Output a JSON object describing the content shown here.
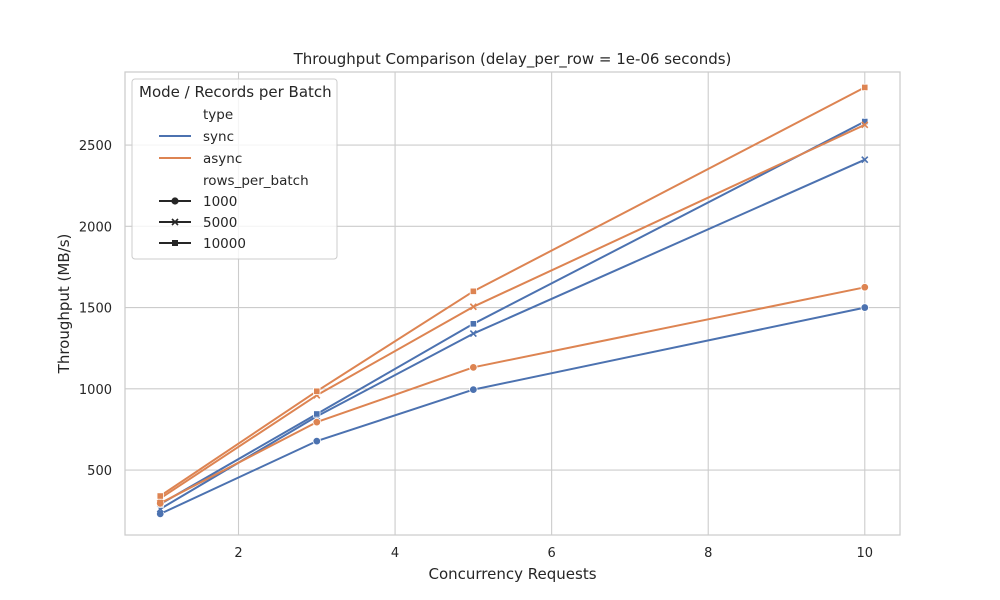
{
  "chart_data": {
    "type": "line",
    "title": "Throughput Comparison (delay_per_row = 1e-06 seconds)",
    "xlabel": "Concurrency Requests",
    "ylabel": "Throughput (MB/s)",
    "xlim": [
      0.55,
      10.45
    ],
    "ylim": [
      100,
      2950
    ],
    "xticks": [
      2,
      4,
      6,
      8,
      10
    ],
    "yticks": [
      500,
      1000,
      1500,
      2000,
      2500
    ],
    "grid": true,
    "colors": {
      "sync": "#4c72b0",
      "async": "#dd8452"
    },
    "legend": {
      "title": "Mode / Records per Batch",
      "placement": "upper left",
      "hue_title": "type",
      "hue_entries": [
        "sync",
        "async"
      ],
      "style_title": "rows_per_batch",
      "style_entries": [
        {
          "label": "1000",
          "marker": "circle"
        },
        {
          "label": "5000",
          "marker": "x"
        },
        {
          "label": "10000",
          "marker": "square"
        }
      ]
    },
    "x": [
      1,
      3,
      5,
      10
    ],
    "series": [
      {
        "name": "sync",
        "rows_per_batch": "1000",
        "values": [
          230,
          678,
          995,
          1500
        ]
      },
      {
        "name": "sync",
        "rows_per_batch": "5000",
        "values": [
          260,
          830,
          1340,
          2410
        ]
      },
      {
        "name": "sync",
        "rows_per_batch": "10000",
        "values": [
          290,
          845,
          1400,
          2645
        ]
      },
      {
        "name": "async",
        "rows_per_batch": "1000",
        "values": [
          295,
          795,
          1132,
          1625
        ]
      },
      {
        "name": "async",
        "rows_per_batch": "5000",
        "values": [
          325,
          960,
          1505,
          2625
        ]
      },
      {
        "name": "async",
        "rows_per_batch": "10000",
        "values": [
          340,
          985,
          1600,
          2855
        ]
      }
    ]
  }
}
